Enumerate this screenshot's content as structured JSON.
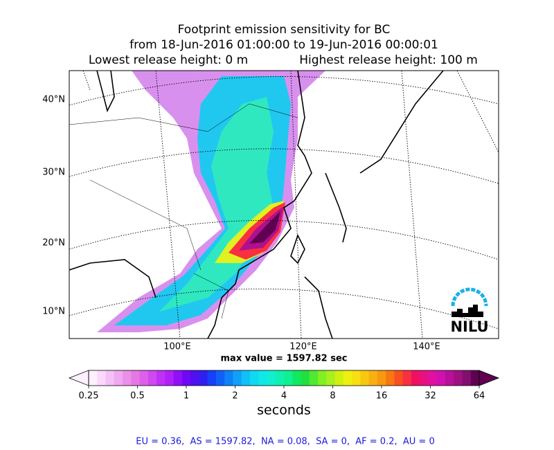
{
  "title_lines": [
    "Footprint emission sensitivity for BC",
    "from 18-Jun-2016 01:00:00 to 19-Jun-2016 00:00:01"
  ],
  "release": {
    "lowest": "Lowest release height: 0 m",
    "highest": "Highest release height: 100 m"
  },
  "map": {
    "lat_labels": [
      "40°N",
      "30°N",
      "20°N",
      "10°N"
    ],
    "lon_labels": [
      "100°E",
      "120°E",
      "140°E"
    ],
    "logo": "NILU"
  },
  "max_value": "max value = 1597.82 sec",
  "colorbar": {
    "label": "seconds",
    "log_scale": true,
    "lim": [
      0.25,
      64
    ],
    "ticks": [
      0.25,
      0.5,
      1,
      2,
      4,
      8,
      16,
      32,
      64
    ],
    "colors": [
      "#fff0ff",
      "#fbd9fb",
      "#f5c0f5",
      "#f0a8f0",
      "#ea90ea",
      "#e478e4",
      "#de60ea",
      "#d048f0",
      "#c030f5",
      "#b020f8",
      "#9010f8",
      "#7008f8",
      "#5010f0",
      "#3020f0",
      "#1840f8",
      "#1060f8",
      "#1080f8",
      "#10a0f8",
      "#10c0f8",
      "#10d8f0",
      "#10e8e8",
      "#10f0d0",
      "#10f0b0",
      "#10f090",
      "#10e860",
      "#20e040",
      "#50e830",
      "#80f020",
      "#a8f020",
      "#d0f010",
      "#f0f010",
      "#f8e010",
      "#f8c810",
      "#f8b010",
      "#f89810",
      "#f87810",
      "#f85020",
      "#f83040",
      "#f01060",
      "#e81080",
      "#e010a0",
      "#d010b0",
      "#b81098",
      "#a01080",
      "#801070",
      "#600050"
    ]
  },
  "footer": "EU = 0.36,  AS = 1597.82,  NA = 0.08,  SA = 0,  AF = 0.2,  AU = 0"
}
